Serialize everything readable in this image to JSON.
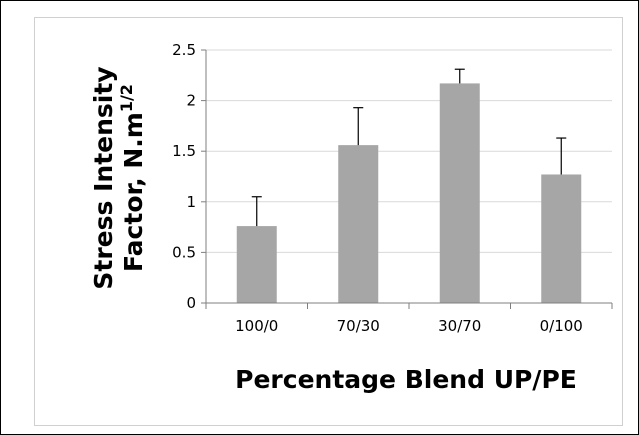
{
  "chart_data": {
    "type": "bar",
    "categories": [
      "100/0",
      "70/30",
      "30/70",
      "0/100"
    ],
    "values": [
      0.76,
      1.56,
      2.17,
      1.27
    ],
    "error_plus": [
      0.29,
      0.37,
      0.14,
      0.36
    ],
    "ylim": [
      0,
      2.5
    ],
    "yticks": [
      "0",
      "0.5",
      "1",
      "1.5",
      "2",
      "2.5"
    ],
    "ytick_values": [
      0,
      0.5,
      1,
      1.5,
      2,
      2.5
    ],
    "xlabel": "Percentage Blend  UP/PE",
    "ylabel_line1": "Stress Intensity",
    "ylabel_line2_main": "Factor, N.m",
    "ylabel_line2_sup": "1/2",
    "grid": "horizontal",
    "bar_color": "#a6a6a6",
    "grid_color": "#d9d9d9",
    "legend": "none"
  }
}
